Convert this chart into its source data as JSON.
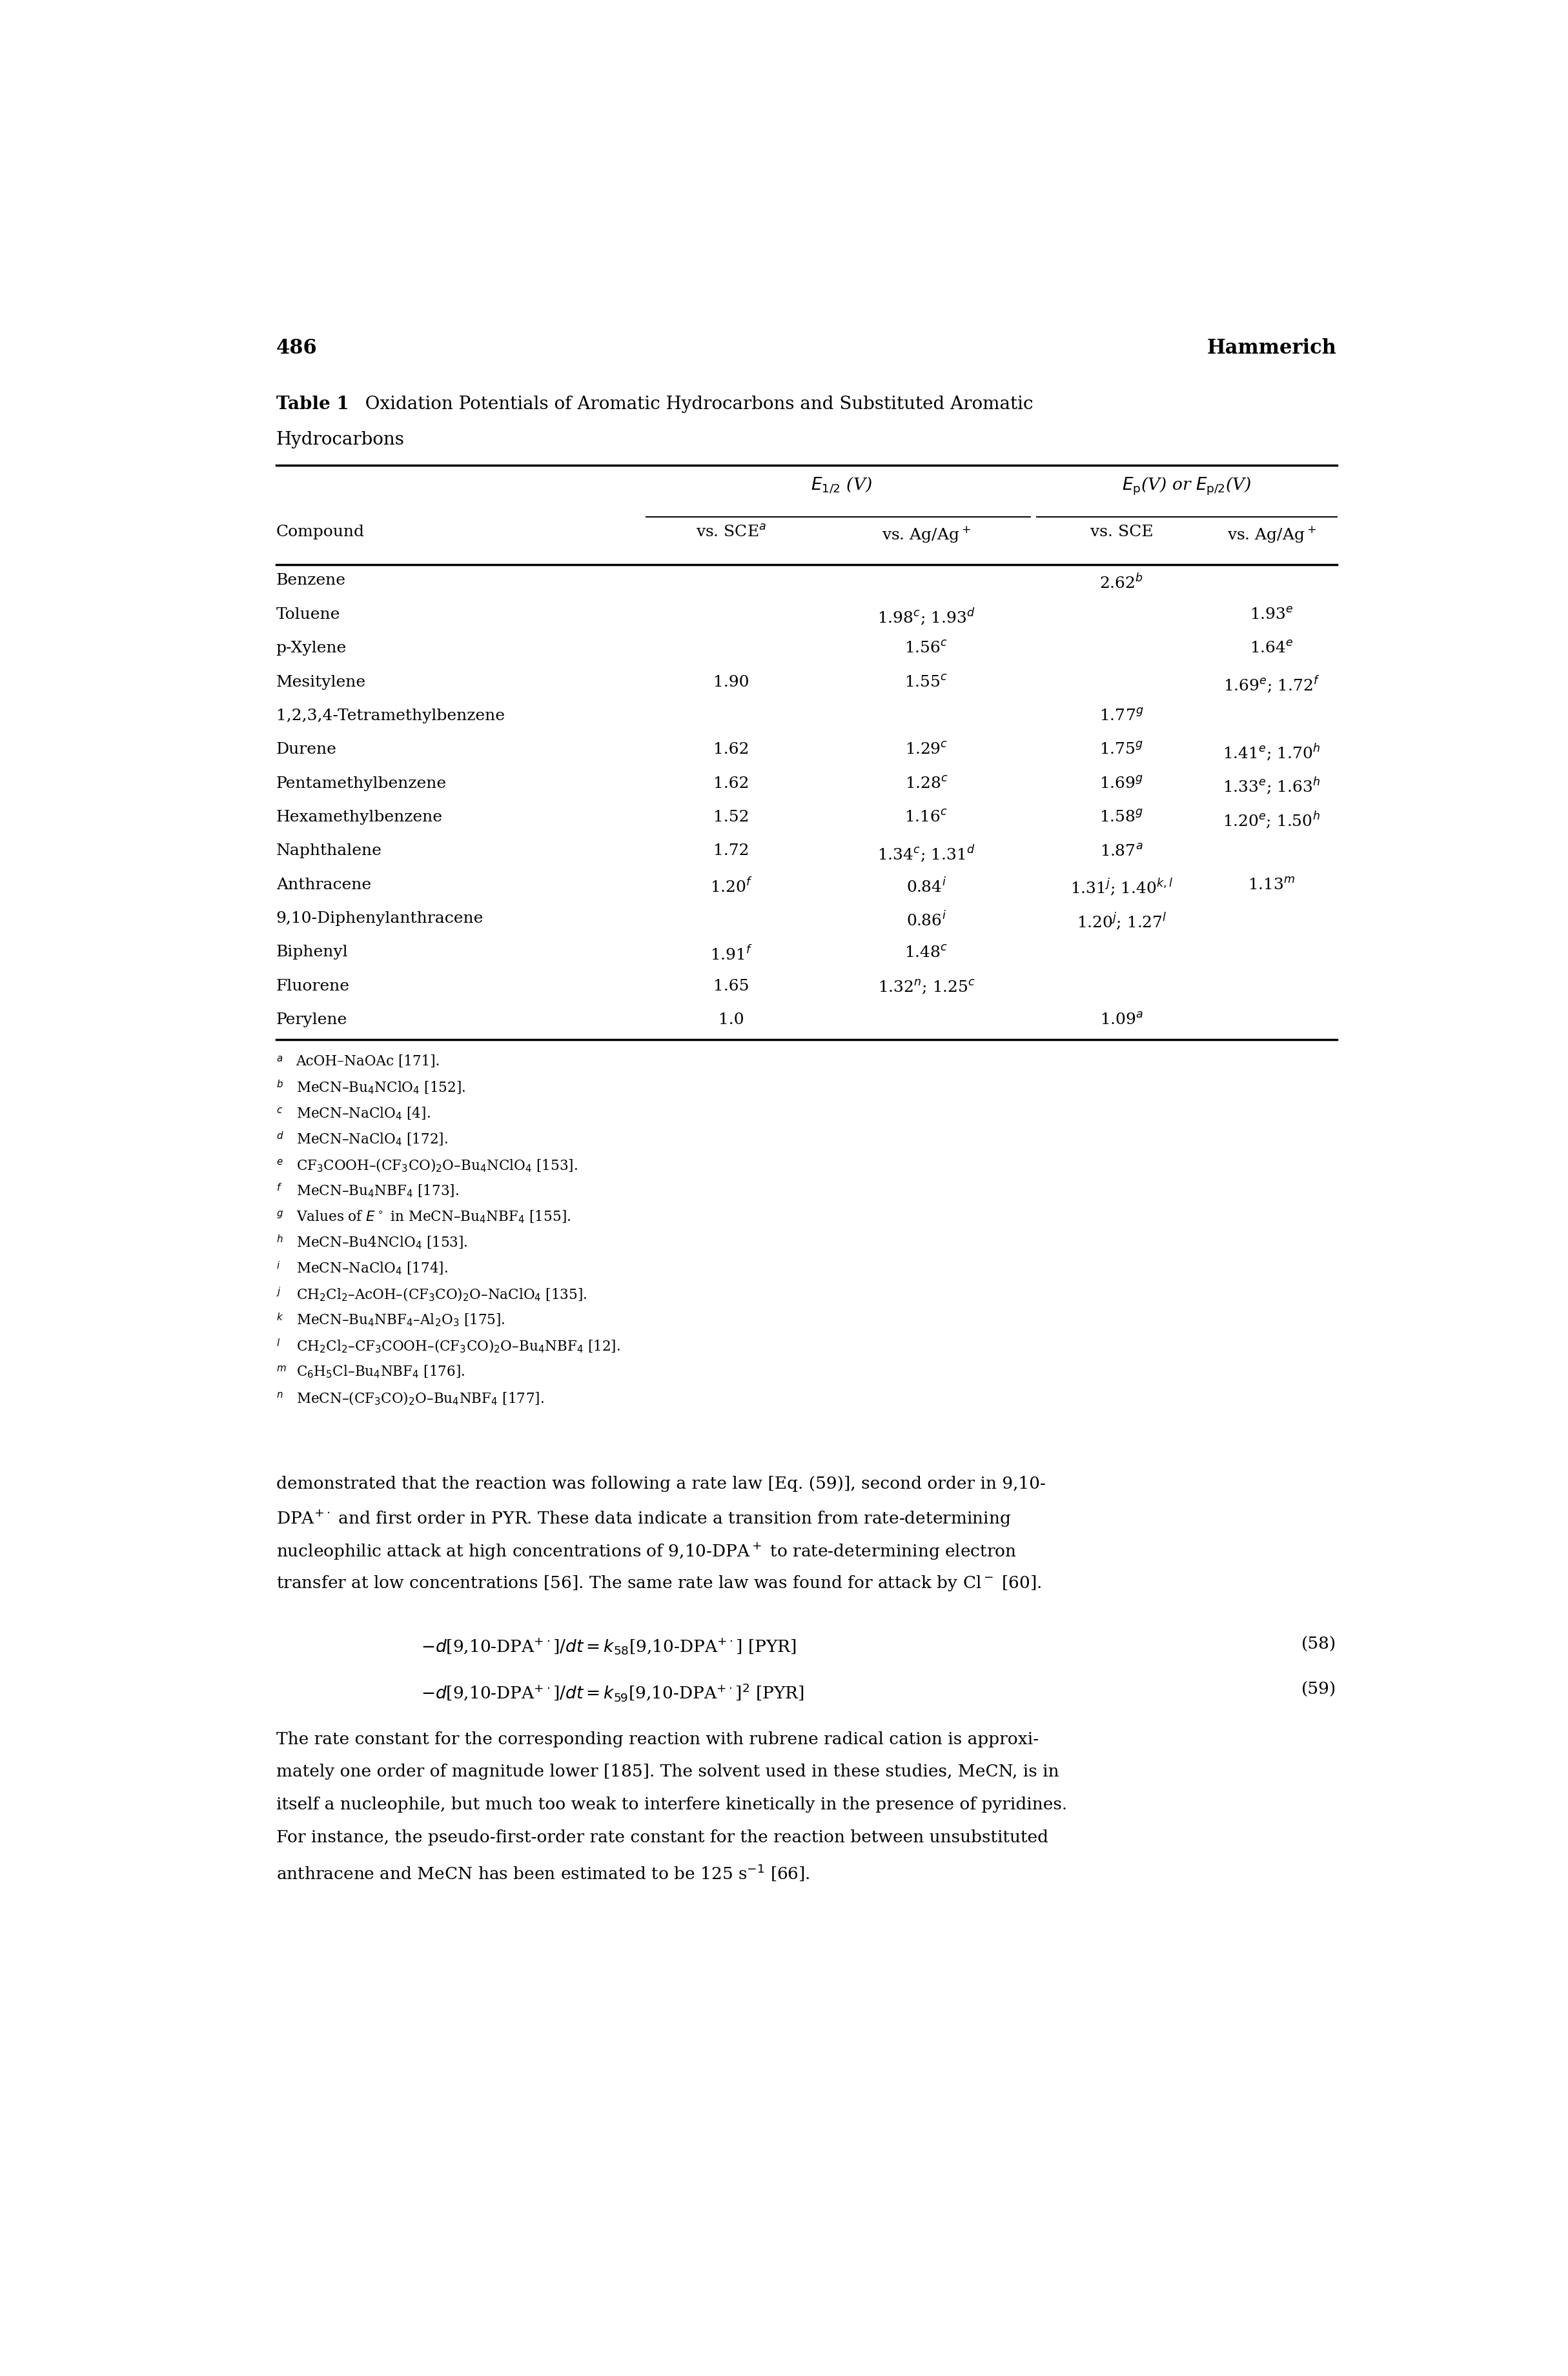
{
  "page_number": "486",
  "page_header_right": "Hammerich",
  "table_title_bold": "Table 1",
  "table_title_caption": "  Oxidation Potentials of Aromatic Hydrocarbons and Substituted Aromatic",
  "table_title_caption2": "Hydrocarbons",
  "col_group1": "$E_{1/2}$ (V)",
  "col_group2": "$E_{\\rm p}$ (V) or $E_{\\rm p/2}$ (V)",
  "col_sub0": "Compound",
  "col_sub1": "vs. SCE$^a$",
  "col_sub2": "vs. Ag/Ag$^+$",
  "col_sub3": "vs. SCE",
  "col_sub4": "vs. Ag/Ag$^+$",
  "rows": [
    [
      "Benzene",
      "",
      "",
      "2.62$^b$",
      ""
    ],
    [
      "Toluene",
      "",
      "1.98$^c$; 1.93$^d$",
      "",
      "1.93$^e$"
    ],
    [
      "p-Xylene",
      "",
      "1.56$^c$",
      "",
      "1.64$^e$"
    ],
    [
      "Mesitylene",
      "1.90",
      "1.55$^c$",
      "",
      "1.69$^e$; 1.72$^f$"
    ],
    [
      "1,2,3,4-Tetramethylbenzene",
      "",
      "",
      "1.77$^g$",
      ""
    ],
    [
      "Durene",
      "1.62",
      "1.29$^c$",
      "1.75$^g$",
      "1.41$^e$; 1.70$^h$"
    ],
    [
      "Pentamethylbenzene",
      "1.62",
      "1.28$^c$",
      "1.69$^g$",
      "1.33$^e$; 1.63$^h$"
    ],
    [
      "Hexamethylbenzene",
      "1.52",
      "1.16$^c$",
      "1.58$^g$",
      "1.20$^e$; 1.50$^h$"
    ],
    [
      "Naphthalene",
      "1.72",
      "1.34$^c$; 1.31$^d$",
      "1.87$^a$",
      ""
    ],
    [
      "Anthracene",
      "1.20$^f$",
      "0.84$^i$",
      "1.31$^j$; 1.40$^{k,l}$",
      "1.13$^m$"
    ],
    [
      "9,10-Diphenylanthracene",
      "",
      "0.86$^i$",
      "1.20$^j$; 1.27$^l$",
      ""
    ],
    [
      "Biphenyl",
      "1.91$^f$",
      "1.48$^c$",
      "",
      ""
    ],
    [
      "Fluorene",
      "1.65",
      "1.32$^n$; 1.25$^c$",
      "",
      ""
    ],
    [
      "Perylene",
      "1.0",
      "",
      "1.09$^a$",
      ""
    ]
  ],
  "footnotes": [
    [
      "a",
      "AcOH–NaOAc [171]."
    ],
    [
      "b",
      "MeCN–Bu$_4$NClO$_4$ [152]."
    ],
    [
      "c",
      "MeCN–NaClO$_4$ [4]."
    ],
    [
      "d",
      "MeCN–NaClO$_4$ [172]."
    ],
    [
      "e",
      "CF$_3$COOH–(CF$_3$CO)$_2$O–Bu$_4$NClO$_4$ [153]."
    ],
    [
      "f",
      "MeCN–Bu$_4$NBF$_4$ [173]."
    ],
    [
      "g",
      "Values of $E^\\circ$ in MeCN–Bu$_4$NBF$_4$ [155]."
    ],
    [
      "h",
      "MeCN–Bu4NClO$_4$ [153]."
    ],
    [
      "i",
      "MeCN–NaClO$_4$ [174]."
    ],
    [
      "j",
      "CH$_2$Cl$_2$–AcOH–(CF$_3$CO)$_2$O–NaClO$_4$ [135]."
    ],
    [
      "k",
      "MeCN–Bu$_4$NBF$_4$–Al$_2$O$_3$ [175]."
    ],
    [
      "l",
      "CH$_2$Cl$_2$–CF$_3$COOH–(CF$_3$CO)$_2$O–Bu$_4$NBF$_4$ [12]."
    ],
    [
      "m",
      "C$_6$H$_5$Cl–Bu$_4$NBF$_4$ [176]."
    ],
    [
      "n",
      "MeCN–(CF$_3$CO)$_2$O–Bu$_4$NBF$_4$ [177]."
    ]
  ],
  "body_lines": [
    "demonstrated that the reaction was following a rate law [Eq. (59)], second order in 9,10-",
    "DPA$^{+\\cdot}$ and first order in PYR. These data indicate a transition from rate-determining",
    "nucleophilic attack at high concentrations of 9,10-DPA$^+$ to rate-determining electron",
    "transfer at low concentrations [56]. The same rate law was found for attack by Cl$^-$ [60]."
  ],
  "eq58": "$-d$[9,10-DPA$^{+\\cdot}$]$/dt = k_{58}$[9,10-DPA$^{+\\cdot}$] [PYR]",
  "eq58_num": "(58)",
  "eq59": "$-d$[9,10-DPA$^{+\\cdot}$]$/dt = k_{59}$[9,10-DPA$^{+\\cdot}$]$^2$ [PYR]",
  "eq59_num": "(59)",
  "final_lines": [
    "The rate constant for the corresponding reaction with rubrene radical cation is approxi-",
    "mately one order of magnitude lower [185]. The solvent used in these studies, MeCN, is in",
    "itself a nucleophile, but much too weak to interfere kinetically in the presence of pyridines.",
    "For instance, the pseudo-first-order rate constant for the reaction between unsubstituted",
    "anthracene and MeCN has been estimated to be 125 s$^{-1}$ [66]."
  ]
}
